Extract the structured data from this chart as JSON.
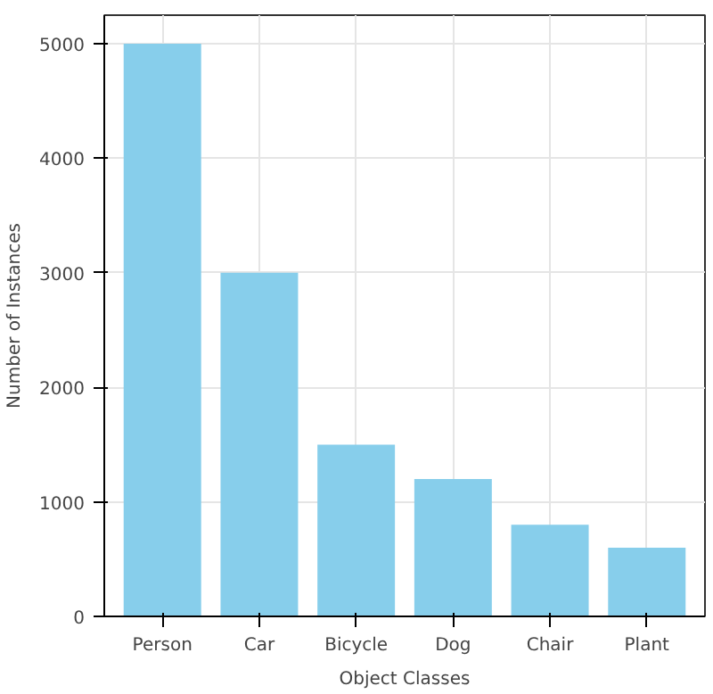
{
  "chart_data": {
    "type": "bar",
    "xlabel": "Object Classes",
    "ylabel": "Number of Instances",
    "categories": [
      "Person",
      "Car",
      "Bicycle",
      "Dog",
      "Chair",
      "Plant"
    ],
    "values": [
      5000,
      3000,
      1500,
      1200,
      800,
      600
    ],
    "color": "#87ceeb",
    "ylim": [
      0,
      5250
    ],
    "yticks": [
      0,
      1000,
      2000,
      3000,
      4000,
      5000
    ],
    "grid": true
  }
}
